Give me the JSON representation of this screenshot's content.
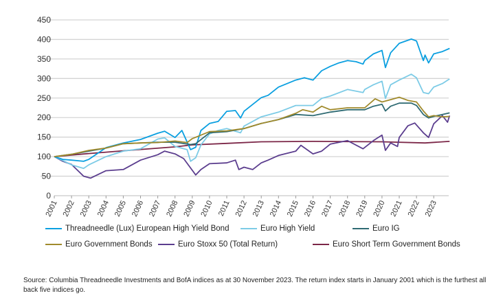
{
  "chart_data": {
    "type": "line",
    "title": "",
    "xlabel": "",
    "ylabel": "",
    "ylim": [
      0,
      450
    ],
    "yticks": [
      0,
      50,
      100,
      150,
      200,
      250,
      300,
      350,
      400,
      450
    ],
    "xlim": [
      2001,
      2023.92
    ],
    "xticks": [
      "2001",
      "2002",
      "2003",
      "2004",
      "2005",
      "2006",
      "2007",
      "2008",
      "2009",
      "2010",
      "2011",
      "2012",
      "2013",
      "2014",
      "2015",
      "2016",
      "2017",
      "2018",
      "2019",
      "2020",
      "2021",
      "2022",
      "2023"
    ],
    "grid": "horizontal",
    "legend_placement": "bottom",
    "series": [
      {
        "name": "Threadneedle (Lux) European High Yield Bond",
        "color": "#0a9fe0",
        "x": [
          2001,
          2001.5,
          2002,
          2002.7,
          2003,
          2004,
          2005,
          2006,
          2007,
          2007.4,
          2008,
          2008.4,
          2008.9,
          2009.2,
          2009.5,
          2010,
          2010.5,
          2011,
          2011.5,
          2011.8,
          2012,
          2013,
          2013.4,
          2014,
          2015,
          2015.5,
          2016,
          2016.5,
          2017,
          2017.5,
          2018,
          2018.5,
          2018.9,
          2019,
          2019.5,
          2020,
          2020.2,
          2020.5,
          2021,
          2021.7,
          2022,
          2022.4,
          2022.5,
          2022.7,
          2023,
          2023.5,
          2023.92
        ],
        "y": [
          100,
          93,
          91,
          88,
          93,
          123,
          135,
          144,
          160,
          165,
          149,
          167,
          118,
          124,
          167,
          185,
          190,
          216,
          218,
          199,
          216,
          251,
          257,
          278,
          296,
          302,
          296,
          320,
          331,
          340,
          346,
          343,
          337,
          346,
          363,
          372,
          328,
          366,
          390,
          401,
          396,
          346,
          360,
          340,
          363,
          369,
          377
        ]
      },
      {
        "name": "Euro High Yield",
        "color": "#7ccbe6",
        "x": [
          2001,
          2001.5,
          2002,
          2002.7,
          2003,
          2004,
          2005,
          2006,
          2007,
          2007.4,
          2008,
          2008.7,
          2008.9,
          2009.2,
          2009.5,
          2010,
          2010.5,
          2011,
          2011.8,
          2012,
          2013,
          2014,
          2015,
          2016,
          2016.5,
          2017,
          2018,
          2018.9,
          2019,
          2019.5,
          2020,
          2020.2,
          2020.5,
          2021,
          2021.7,
          2022,
          2022.4,
          2022.7,
          2023,
          2023.5,
          2023.92
        ],
        "y": [
          100,
          90,
          79,
          70,
          79,
          100,
          114,
          120,
          145,
          148,
          126,
          118,
          88,
          97,
          130,
          158,
          167,
          172,
          161,
          178,
          202,
          214,
          231,
          231,
          249,
          255,
          272,
          264,
          272,
          284,
          293,
          249,
          284,
          296,
          311,
          302,
          264,
          261,
          278,
          287,
          299
        ]
      },
      {
        "name": "Euro IG",
        "color": "#2e6a72",
        "x": [
          2001,
          2002,
          2003,
          2004,
          2005,
          2006,
          2007,
          2008,
          2008.9,
          2009.2,
          2010,
          2011,
          2012,
          2013,
          2014,
          2015,
          2016,
          2017,
          2018,
          2019,
          2019.5,
          2020,
          2020.2,
          2020.5,
          2021,
          2021.7,
          2022,
          2022.4,
          2022.7,
          2023,
          2023.5,
          2023.92
        ],
        "y": [
          100,
          106,
          114,
          122,
          133,
          135,
          137,
          137,
          131,
          133,
          161,
          164,
          172,
          185,
          195,
          208,
          205,
          214,
          220,
          220,
          229,
          234,
          217,
          229,
          237,
          237,
          231,
          208,
          199,
          203,
          208,
          212
        ]
      },
      {
        "name": "Euro Government Bonds",
        "color": "#a08a2c",
        "x": [
          2001,
          2002,
          2003,
          2004,
          2005,
          2006,
          2007,
          2008,
          2008.7,
          2009,
          2010,
          2011,
          2012,
          2013,
          2014,
          2015,
          2015.4,
          2016,
          2016.5,
          2017,
          2018,
          2019,
          2019.6,
          2020,
          2020.5,
          2021,
          2021.5,
          2022,
          2022.4,
          2022.7,
          2023,
          2023.5,
          2023.92
        ],
        "y": [
          100,
          106,
          116,
          122,
          133,
          135,
          136,
          140,
          136,
          146,
          164,
          166,
          172,
          185,
          195,
          211,
          220,
          214,
          229,
          220,
          225,
          225,
          248,
          240,
          246,
          252,
          244,
          240,
          217,
          202,
          205,
          202,
          203
        ]
      },
      {
        "name": "Euro Stoxx 50 (Total Return)",
        "color": "#5b3d8e",
        "x": [
          2001,
          2001.5,
          2002,
          2002.7,
          2003.1,
          2004,
          2005,
          2006,
          2007,
          2007.4,
          2008,
          2008.5,
          2009.2,
          2009.5,
          2010,
          2011,
          2011.5,
          2011.7,
          2012,
          2012.5,
          2013,
          2013.4,
          2014,
          2015,
          2015.3,
          2016,
          2016.5,
          2017,
          2018,
          2018.9,
          2019.5,
          2020,
          2020.2,
          2020.5,
          2020.9,
          2021,
          2021.5,
          2021.9,
          2022.4,
          2022.7,
          2023,
          2023.5,
          2023.8,
          2023.92
        ],
        "y": [
          100,
          88,
          80,
          50,
          45,
          64,
          67,
          91,
          105,
          114,
          107,
          95,
          53,
          67,
          82,
          84,
          91,
          67,
          73,
          67,
          84,
          91,
          103,
          114,
          129,
          107,
          114,
          132,
          141,
          120,
          141,
          155,
          116,
          135,
          126,
          149,
          179,
          186,
          161,
          149,
          184,
          205,
          188,
          205
        ]
      },
      {
        "name": "Euro Short Term Government Bonds",
        "color": "#7b2647",
        "x": [
          2001,
          2003,
          2005,
          2008,
          2009,
          2011,
          2013,
          2016,
          2020,
          2022.5,
          2023.92
        ],
        "y": [
          100,
          108,
          115,
          125,
          130,
          134,
          138,
          139,
          138,
          135,
          139
        ]
      }
    ]
  },
  "source_note": "Source: Columbia Threadneedle Investments and BofA indices as at 30 November 2023. The return index starts in January 2001 which is the furthest all back five indices go."
}
